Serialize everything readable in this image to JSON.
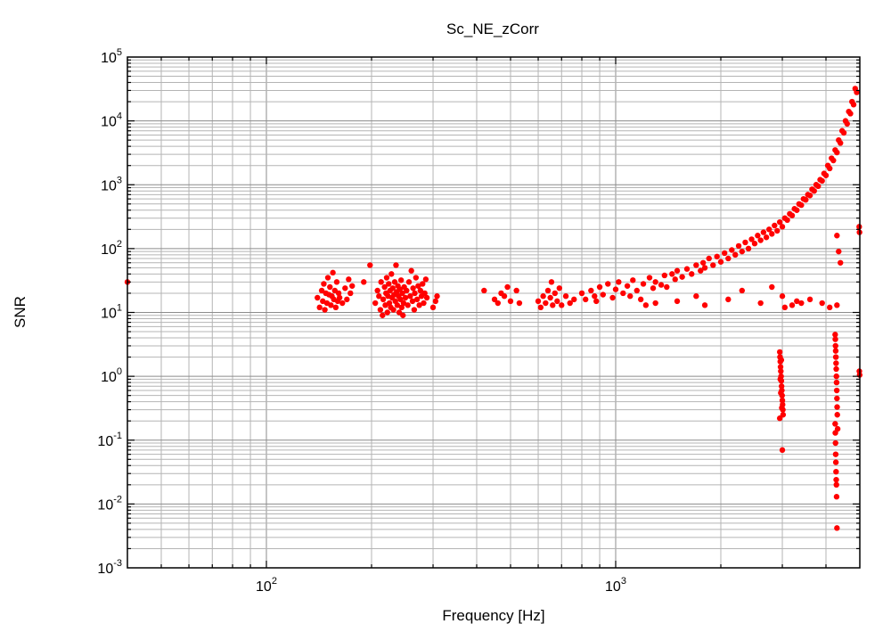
{
  "chart_data": {
    "type": "scatter",
    "title": "Sc_NE_zCorr",
    "xlabel": "Frequency [Hz]",
    "ylabel": "SNR",
    "xscale": "log",
    "yscale": "log",
    "xlim": [
      40,
      5000
    ],
    "ylim": [
      0.001,
      100000
    ],
    "grid": true,
    "marker_color": "#ff0000",
    "x_tick_labels": [
      {
        "value": 100,
        "base": "10",
        "exp": "2"
      },
      {
        "value": 1000,
        "base": "10",
        "exp": "3"
      }
    ],
    "y_tick_labels": [
      {
        "value": 100000,
        "base": "10",
        "exp": "5"
      },
      {
        "value": 10000,
        "base": "10",
        "exp": "4"
      },
      {
        "value": 1000,
        "base": "10",
        "exp": "3"
      },
      {
        "value": 100,
        "base": "10",
        "exp": "2"
      },
      {
        "value": 10,
        "base": "10",
        "exp": "1"
      },
      {
        "value": 1,
        "base": "10",
        "exp": "0"
      },
      {
        "value": 0.1,
        "base": "10",
        "exp": "-1"
      },
      {
        "value": 0.01,
        "base": "10",
        "exp": "-2"
      },
      {
        "value": 0.001,
        "base": "10",
        "exp": "-3"
      }
    ],
    "series": [
      {
        "points": [
          [
            40,
            30
          ],
          [
            140,
            17
          ],
          [
            142,
            12
          ],
          [
            144,
            22
          ],
          [
            145,
            15
          ],
          [
            146,
            28
          ],
          [
            147,
            11
          ],
          [
            148,
            20
          ],
          [
            149,
            14
          ],
          [
            150,
            35
          ],
          [
            151,
            19
          ],
          [
            152,
            25
          ],
          [
            153,
            13
          ],
          [
            154,
            18
          ],
          [
            155,
            42
          ],
          [
            156,
            16
          ],
          [
            157,
            22
          ],
          [
            158,
            12
          ],
          [
            159,
            30
          ],
          [
            160,
            15
          ],
          [
            161,
            20
          ],
          [
            162,
            17
          ],
          [
            165,
            14
          ],
          [
            168,
            24
          ],
          [
            170,
            16
          ],
          [
            172,
            33
          ],
          [
            174,
            20
          ],
          [
            176,
            26
          ],
          [
            190,
            30
          ],
          [
            198,
            55
          ],
          [
            205,
            14
          ],
          [
            208,
            22
          ],
          [
            210,
            18
          ],
          [
            212,
            11
          ],
          [
            213,
            30
          ],
          [
            215,
            9
          ],
          [
            216,
            16
          ],
          [
            218,
            25
          ],
          [
            219,
            13
          ],
          [
            220,
            20
          ],
          [
            221,
            35
          ],
          [
            222,
            10
          ],
          [
            223,
            18
          ],
          [
            224,
            28
          ],
          [
            225,
            14
          ],
          [
            226,
            22
          ],
          [
            227,
            12
          ],
          [
            228,
            40
          ],
          [
            229,
            17
          ],
          [
            230,
            24
          ],
          [
            231,
            11
          ],
          [
            232,
            19
          ],
          [
            233,
            30
          ],
          [
            234,
            15
          ],
          [
            235,
            55
          ],
          [
            236,
            21
          ],
          [
            237,
            13
          ],
          [
            238,
            26
          ],
          [
            239,
            18
          ],
          [
            240,
            10
          ],
          [
            241,
            23
          ],
          [
            242,
            16
          ],
          [
            243,
            32
          ],
          [
            244,
            12
          ],
          [
            245,
            20
          ],
          [
            246,
            9
          ],
          [
            247,
            14
          ],
          [
            248,
            25
          ],
          [
            250,
            17
          ],
          [
            252,
            22
          ],
          [
            254,
            13
          ],
          [
            256,
            30
          ],
          [
            258,
            18
          ],
          [
            260,
            45
          ],
          [
            262,
            15
          ],
          [
            263,
            24
          ],
          [
            265,
            11
          ],
          [
            266,
            20
          ],
          [
            268,
            35
          ],
          [
            270,
            16
          ],
          [
            272,
            26
          ],
          [
            274,
            13
          ],
          [
            276,
            22
          ],
          [
            278,
            18
          ],
          [
            280,
            28
          ],
          [
            282,
            14
          ],
          [
            284,
            20
          ],
          [
            286,
            33
          ],
          [
            288,
            17
          ],
          [
            300,
            12
          ],
          [
            305,
            15
          ],
          [
            308,
            18
          ],
          [
            420,
            22
          ],
          [
            450,
            16
          ],
          [
            460,
            14
          ],
          [
            470,
            20
          ],
          [
            480,
            18
          ],
          [
            490,
            25
          ],
          [
            500,
            15
          ],
          [
            520,
            22
          ],
          [
            530,
            14
          ],
          [
            600,
            15
          ],
          [
            610,
            12
          ],
          [
            620,
            18
          ],
          [
            630,
            14
          ],
          [
            640,
            22
          ],
          [
            650,
            17
          ],
          [
            655,
            30
          ],
          [
            660,
            13
          ],
          [
            670,
            20
          ],
          [
            680,
            15
          ],
          [
            690,
            24
          ],
          [
            700,
            13
          ],
          [
            720,
            18
          ],
          [
            740,
            14
          ],
          [
            760,
            16
          ],
          [
            800,
            20
          ],
          [
            820,
            16
          ],
          [
            850,
            22
          ],
          [
            870,
            18
          ],
          [
            880,
            15
          ],
          [
            900,
            25
          ],
          [
            920,
            19
          ],
          [
            950,
            28
          ],
          [
            980,
            17
          ],
          [
            1000,
            23
          ],
          [
            1020,
            30
          ],
          [
            1050,
            20
          ],
          [
            1080,
            26
          ],
          [
            1100,
            18
          ],
          [
            1120,
            32
          ],
          [
            1150,
            22
          ],
          [
            1180,
            16
          ],
          [
            1200,
            28
          ],
          [
            1220,
            13
          ],
          [
            1250,
            35
          ],
          [
            1280,
            24
          ],
          [
            1300,
            30
          ],
          [
            1350,
            27
          ],
          [
            1380,
            38
          ],
          [
            1400,
            25
          ],
          [
            1450,
            40
          ],
          [
            1480,
            33
          ],
          [
            1500,
            45
          ],
          [
            1550,
            36
          ],
          [
            1600,
            48
          ],
          [
            1650,
            40
          ],
          [
            1700,
            55
          ],
          [
            1750,
            45
          ],
          [
            1780,
            60
          ],
          [
            1800,
            50
          ],
          [
            1850,
            70
          ],
          [
            1900,
            55
          ],
          [
            1950,
            75
          ],
          [
            2000,
            62
          ],
          [
            2050,
            85
          ],
          [
            2100,
            70
          ],
          [
            2150,
            95
          ],
          [
            2200,
            80
          ],
          [
            2250,
            110
          ],
          [
            2300,
            90
          ],
          [
            2350,
            125
          ],
          [
            2400,
            100
          ],
          [
            2450,
            140
          ],
          [
            2500,
            120
          ],
          [
            2550,
            160
          ],
          [
            2600,
            135
          ],
          [
            2650,
            180
          ],
          [
            2700,
            150
          ],
          [
            2750,
            200
          ],
          [
            2800,
            170
          ],
          [
            2850,
            230
          ],
          [
            2900,
            190
          ],
          [
            2950,
            260
          ],
          [
            3000,
            220
          ],
          [
            3050,
            300
          ],
          [
            3100,
            280
          ],
          [
            3150,
            350
          ],
          [
            3200,
            330
          ],
          [
            3250,
            420
          ],
          [
            3300,
            400
          ],
          [
            3350,
            500
          ],
          [
            3400,
            480
          ],
          [
            3450,
            600
          ],
          [
            3500,
            580
          ],
          [
            3550,
            700
          ],
          [
            3600,
            680
          ],
          [
            3650,
            850
          ],
          [
            3700,
            800
          ],
          [
            3750,
            1000
          ],
          [
            3800,
            950
          ],
          [
            3850,
            1200
          ],
          [
            3900,
            1150
          ],
          [
            3950,
            1500
          ],
          [
            4000,
            1400
          ],
          [
            4050,
            2000
          ],
          [
            4100,
            1800
          ],
          [
            4150,
            2600
          ],
          [
            4200,
            2400
          ],
          [
            4250,
            3500
          ],
          [
            4300,
            3200
          ],
          [
            4350,
            5000
          ],
          [
            4400,
            4500
          ],
          [
            4450,
            7000
          ],
          [
            4500,
            6500
          ],
          [
            4550,
            10000
          ],
          [
            4600,
            9000
          ],
          [
            4650,
            14000
          ],
          [
            4700,
            13000
          ],
          [
            4750,
            20000
          ],
          [
            4800,
            18000
          ],
          [
            4850,
            32000
          ],
          [
            4900,
            28000
          ],
          [
            1300,
            14
          ],
          [
            1500,
            15
          ],
          [
            1700,
            18
          ],
          [
            1800,
            13
          ],
          [
            2100,
            16
          ],
          [
            2300,
            22
          ],
          [
            2600,
            14
          ],
          [
            2800,
            25
          ],
          [
            3000,
            18
          ],
          [
            3050,
            12
          ],
          [
            3200,
            13
          ],
          [
            3300,
            15
          ],
          [
            3400,
            14
          ],
          [
            3600,
            16
          ],
          [
            3900,
            14
          ],
          [
            4100,
            12
          ],
          [
            4300,
            13
          ],
          [
            2950,
            2.4
          ],
          [
            2955,
            2.0
          ],
          [
            2960,
            1.7
          ],
          [
            2965,
            1.4
          ],
          [
            2970,
            1.2
          ],
          [
            2975,
            1.0
          ],
          [
            2980,
            0.85
          ],
          [
            2985,
            0.7
          ],
          [
            2990,
            0.6
          ],
          [
            2995,
            0.5
          ],
          [
            3000,
            0.42
          ],
          [
            3005,
            0.36
          ],
          [
            3010,
            0.3
          ],
          [
            3015,
            0.25
          ],
          [
            2950,
            0.22
          ],
          [
            2960,
            0.9
          ],
          [
            2970,
            0.55
          ],
          [
            2980,
            1.8
          ],
          [
            2990,
            0.32
          ],
          [
            3000,
            0.07
          ],
          [
            4250,
            4.5
          ],
          [
            4255,
            3.8
          ],
          [
            4260,
            3.0
          ],
          [
            4265,
            2.5
          ],
          [
            4270,
            2.0
          ],
          [
            4275,
            1.6
          ],
          [
            4280,
            1.3
          ],
          [
            4285,
            1.0
          ],
          [
            4290,
            0.8
          ],
          [
            4295,
            0.6
          ],
          [
            4300,
            0.45
          ],
          [
            4305,
            0.33
          ],
          [
            4310,
            0.25
          ],
          [
            4250,
            0.18
          ],
          [
            4255,
            0.13
          ],
          [
            4260,
            0.09
          ],
          [
            4265,
            0.06
          ],
          [
            4270,
            0.045
          ],
          [
            4275,
            0.032
          ],
          [
            4280,
            0.024
          ],
          [
            4285,
            0.02
          ],
          [
            4290,
            0.013
          ],
          [
            4300,
            0.0042
          ],
          [
            4320,
            0.15
          ],
          [
            4300,
            160
          ],
          [
            4350,
            90
          ],
          [
            4400,
            60
          ],
          [
            4980,
            220
          ],
          [
            4990,
            180
          ],
          [
            4985,
            1.2
          ],
          [
            4995,
            1.05
          ]
        ]
      }
    ]
  }
}
